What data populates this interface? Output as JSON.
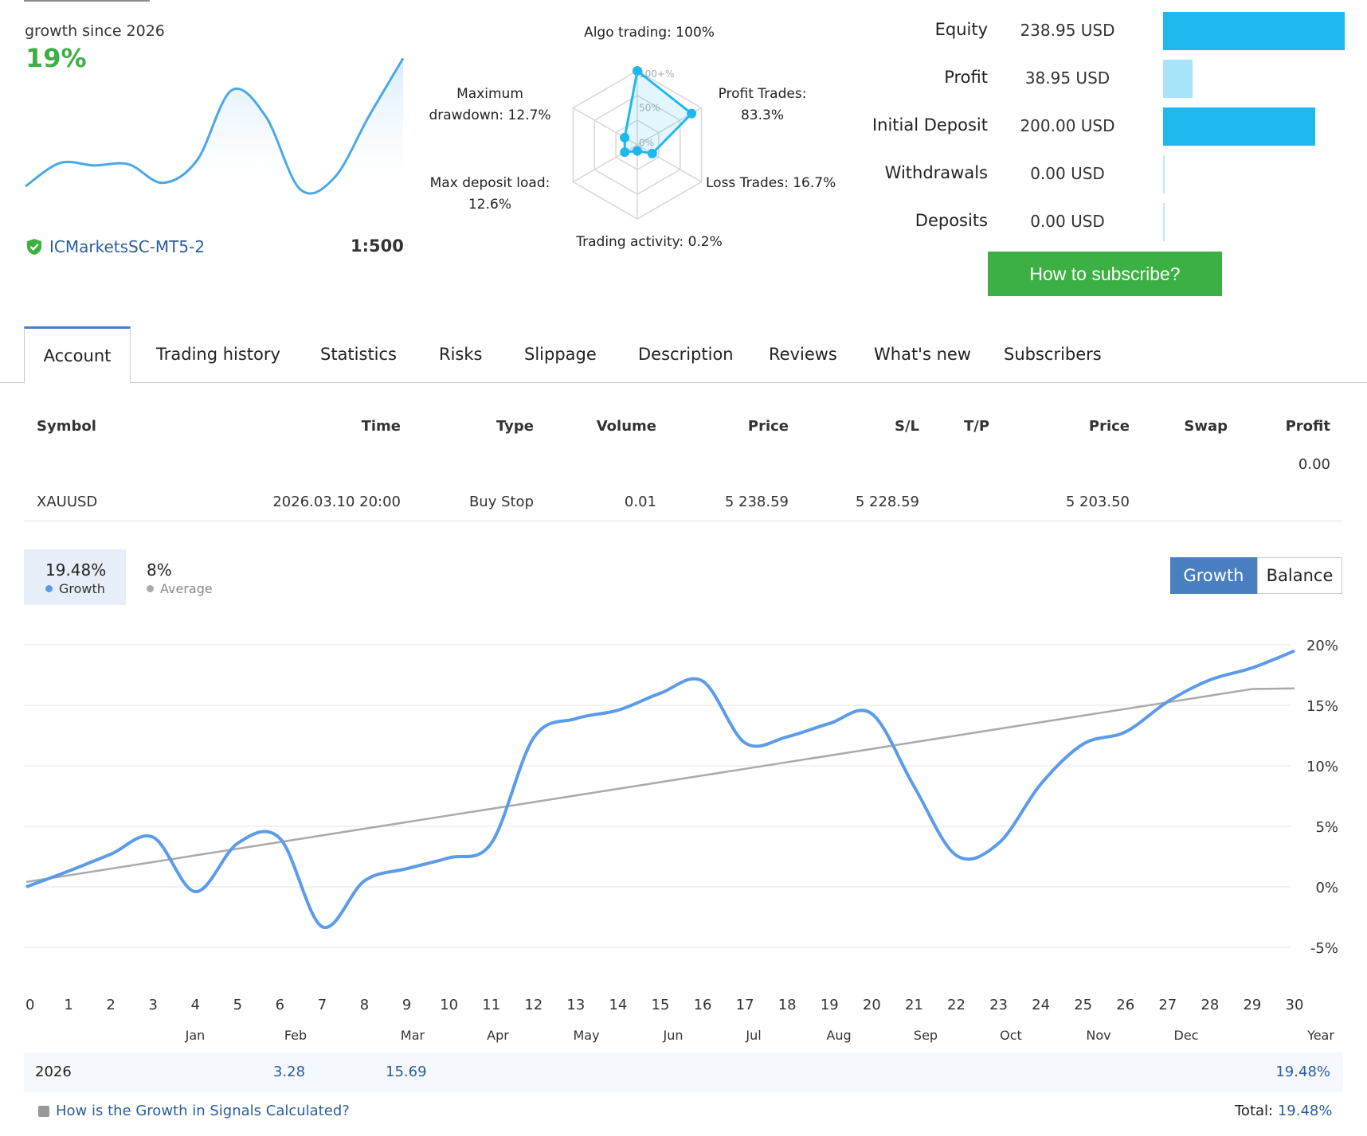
{
  "summary": {
    "growth_label": "growth since 2026",
    "growth_value": "19%",
    "broker": "ICMarketsSC-MT5-2",
    "leverage": "1:500"
  },
  "radar": {
    "labels": {
      "algo": "Algo trading: 100%",
      "profit_trades_1": "Profit Trades:",
      "profit_trades_2": "83.3%",
      "loss_trades": "Loss Trades: 16.7%",
      "activity": "Trading activity: 0.2%",
      "deposit_load_1": "Max deposit load:",
      "deposit_load_2": "12.6%",
      "drawdown_1": "Maximum",
      "drawdown_2": "drawdown: 12.7%"
    },
    "scale": [
      "100+%",
      "50%",
      "0%"
    ],
    "values": {
      "algo": 100,
      "profit_trades": 83.3,
      "loss_trades": 16.7,
      "activity": 0.2,
      "deposit_load": 12.6,
      "drawdown": 12.7
    }
  },
  "stats": [
    {
      "label": "Equity",
      "value": "238.95 USD",
      "fraction": 1.0,
      "color": "#1eb8ef"
    },
    {
      "label": "Profit",
      "value": "38.95 USD",
      "fraction": 0.163,
      "color": "#a8e3f7"
    },
    {
      "label": "Initial Deposit",
      "value": "200.00 USD",
      "fraction": 0.837,
      "color": "#1eb8ef"
    },
    {
      "label": "Withdrawals",
      "value": "0.00 USD",
      "fraction": 0.0,
      "color": "#1eb8ef"
    },
    {
      "label": "Deposits",
      "value": "0.00 USD",
      "fraction": 0.0,
      "color": "#1eb8ef"
    }
  ],
  "subscribe_button": "How to subscribe?",
  "tabs": [
    "Account",
    "Trading history",
    "Statistics",
    "Risks",
    "Slippage",
    "Description",
    "Reviews",
    "What's new",
    "Subscribers"
  ],
  "orders_table": {
    "headers": [
      "Symbol",
      "Time",
      "Type",
      "Volume",
      "Price",
      "S/L",
      "T/P",
      "Price",
      "Swap",
      "Profit"
    ],
    "total_profit": "0.00",
    "row": {
      "symbol": "XAUUSD",
      "time": "2026.03.10 20:00",
      "type": "Buy Stop",
      "volume": "0.01",
      "price": "5 238.59",
      "sl": "5 228.59",
      "tp": "",
      "price2": "5 203.50",
      "swap": "",
      "profit": ""
    }
  },
  "growth_summary": {
    "growth_value": "19.48%",
    "growth_label": "Growth",
    "average_value": "8%",
    "average_label": "Average"
  },
  "toggle": {
    "growth": "Growth",
    "balance": "Balance"
  },
  "chart_data": {
    "type": "line",
    "x": [
      0,
      1,
      2,
      3,
      4,
      5,
      6,
      7,
      8,
      9,
      10,
      11,
      12,
      13,
      14,
      15,
      16,
      17,
      18,
      19,
      20,
      21,
      22,
      23,
      24,
      25,
      26,
      27,
      28,
      29,
      30
    ],
    "series": [
      {
        "name": "Growth",
        "color": "#5b9bea",
        "values": [
          0,
          1.3,
          2.7,
          4.1,
          -0.4,
          3.6,
          4.0,
          -3.3,
          0.5,
          1.5,
          2.4,
          3.6,
          12.3,
          13.9,
          14.6,
          16.0,
          17.0,
          11.9,
          12.4,
          13.5,
          14.3,
          8.3,
          2.6,
          3.6,
          8.5,
          11.8,
          12.8,
          15.3,
          17.1,
          18.1,
          19.5
        ]
      },
      {
        "name": "Average",
        "color": "#aaaaaa",
        "values": [
          0.4,
          0.95,
          1.5,
          2.05,
          2.6,
          3.15,
          3.7,
          4.25,
          4.8,
          5.35,
          5.9,
          6.45,
          7.0,
          7.55,
          8.1,
          8.65,
          9.2,
          9.75,
          10.3,
          10.85,
          11.4,
          11.95,
          12.5,
          13.05,
          13.6,
          14.15,
          14.7,
          15.25,
          15.8,
          16.35,
          16.4
        ]
      }
    ],
    "y_ticks": [
      "20%",
      "15%",
      "10%",
      "5%",
      "0%",
      "-5%"
    ],
    "y_tick_values": [
      20,
      15,
      10,
      5,
      0,
      -5
    ],
    "ylim": [
      -5,
      20
    ],
    "x_ticks": [
      "0",
      "1",
      "2",
      "3",
      "4",
      "5",
      "6",
      "7",
      "8",
      "9",
      "10",
      "11",
      "12",
      "13",
      "14",
      "15",
      "16",
      "17",
      "18",
      "19",
      "20",
      "21",
      "22",
      "23",
      "24",
      "25",
      "26",
      "27",
      "28",
      "29",
      "30"
    ],
    "months": [
      "Jan",
      "Feb",
      "Mar",
      "Apr",
      "May",
      "Jun",
      "Jul",
      "Aug",
      "Sep",
      "Oct",
      "Nov",
      "Dec",
      "Year"
    ],
    "grid": true
  },
  "mini_chart": {
    "values": [
      0,
      4,
      3.6,
      3.8,
      0.6,
      4.5,
      16.5,
      12,
      -0.5,
      1.5,
      12,
      22
    ]
  },
  "year_row": {
    "year": "2026",
    "feb": "3.28",
    "mar": "15.69",
    "year_total": "19.48%"
  },
  "footer": {
    "calc_link": "How is the Growth in Signals Calculated?",
    "total_label": "Total:",
    "total_value": "19.48%"
  }
}
